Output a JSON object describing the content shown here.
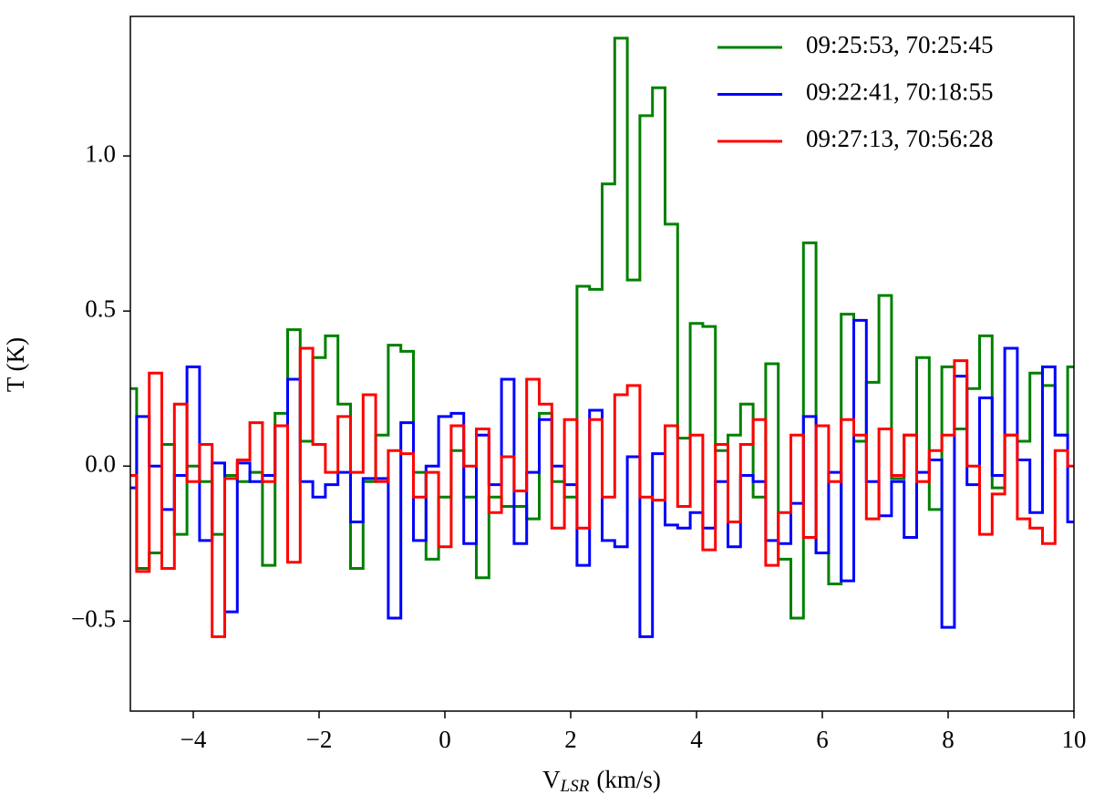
{
  "chart_data": {
    "type": "step",
    "xlabel": [
      "V",
      "LSR",
      "(km/s)"
    ],
    "ylabel": "T (K)",
    "xlim": [
      -5,
      10
    ],
    "ylim": [
      -0.79,
      1.45
    ],
    "xticks": [
      {
        "value": -4,
        "label": "−4"
      },
      {
        "value": -2,
        "label": "−2"
      },
      0,
      2,
      4,
      6,
      8,
      10
    ],
    "yticks": [
      {
        "value": -0.5,
        "label": "−0.5"
      },
      {
        "value": 0,
        "label": "0.0"
      },
      {
        "value": 0.5,
        "label": "0.5"
      },
      {
        "value": 1,
        "label": "1.0"
      }
    ],
    "legend": "upper right",
    "x": [
      -5,
      -4.8,
      -4.6,
      -4.4,
      -4.2,
      -4,
      -3.8,
      -3.6,
      -3.4,
      -3.2,
      -3,
      -2.8,
      -2.6,
      -2.4,
      -2.2,
      -2,
      -1.8,
      -1.6,
      -1.4,
      -1.2,
      -1,
      -0.8,
      -0.6,
      -0.4,
      -0.2,
      0,
      0.2,
      0.4,
      0.6,
      0.8,
      1,
      1.2,
      1.4,
      1.6,
      1.8,
      2,
      2.2,
      2.4,
      2.6,
      2.8,
      3,
      3.2,
      3.4,
      3.6,
      3.8,
      4,
      4.2,
      4.4,
      4.6,
      4.8,
      5,
      5.2,
      5.4,
      5.6,
      5.8,
      6,
      6.2,
      6.4,
      6.6,
      6.8,
      7,
      7.2,
      7.4,
      7.6,
      7.8,
      8,
      8.2,
      8.4,
      8.6,
      8.8,
      9,
      9.2,
      9.4,
      9.6,
      9.8,
      10
    ],
    "series": [
      {
        "name": "09:25:53, 70:25:45",
        "color": "#008000",
        "values": [
          0.25,
          -0.33,
          -0.28,
          0.07,
          -0.22,
          0.0,
          -0.05,
          -0.22,
          -0.03,
          -0.05,
          -0.02,
          -0.32,
          0.17,
          0.44,
          0.08,
          0.35,
          0.42,
          0.2,
          -0.33,
          -0.05,
          0.1,
          0.39,
          0.37,
          -0.02,
          -0.3,
          -0.1,
          0.05,
          -0.1,
          -0.36,
          -0.1,
          -0.13,
          -0.13,
          -0.17,
          0.17,
          -0.05,
          -0.1,
          0.58,
          0.57,
          0.91,
          1.38,
          0.6,
          1.13,
          1.22,
          0.78,
          0.09,
          0.46,
          0.45,
          0.05,
          0.1,
          0.2,
          -0.1,
          0.33,
          -0.3,
          -0.49,
          0.72,
          -0.28,
          -0.38,
          0.49,
          0.08,
          0.27,
          0.55,
          -0.04,
          0.1,
          0.35,
          -0.14,
          0.32,
          0.12,
          0.25,
          0.42,
          -0.07,
          0.1,
          0.08,
          0.3,
          0.26,
          0.1,
          0.32
        ]
      },
      {
        "name": "09:22:41, 70:18:55",
        "color": "#0000ff",
        "values": [
          -0.07,
          0.16,
          0.0,
          -0.14,
          -0.03,
          0.32,
          -0.24,
          0.01,
          -0.47,
          0.01,
          -0.05,
          -0.03,
          0.13,
          0.28,
          -0.05,
          -0.1,
          -0.06,
          -0.02,
          -0.18,
          -0.04,
          -0.04,
          -0.49,
          0.14,
          -0.24,
          0.0,
          0.16,
          0.17,
          -0.25,
          0.1,
          -0.06,
          0.28,
          -0.25,
          -0.02,
          0.15,
          0.0,
          -0.06,
          -0.32,
          0.18,
          -0.24,
          -0.26,
          0.03,
          -0.55,
          0.04,
          -0.19,
          -0.2,
          -0.15,
          -0.2,
          -0.05,
          -0.26,
          -0.03,
          -0.05,
          -0.24,
          -0.25,
          -0.12,
          0.16,
          -0.28,
          -0.02,
          -0.37,
          0.47,
          -0.05,
          -0.16,
          -0.05,
          -0.23,
          -0.02,
          0.02,
          -0.52,
          0.29,
          -0.06,
          0.22,
          -0.03,
          0.38,
          0.02,
          -0.15,
          0.32,
          0.1,
          -0.18
        ]
      },
      {
        "name": "09:27:13, 70:56:28",
        "color": "#ff0000",
        "values": [
          -0.03,
          -0.34,
          0.3,
          -0.33,
          0.2,
          -0.05,
          0.07,
          -0.55,
          -0.04,
          0.02,
          0.14,
          -0.05,
          0.13,
          -0.31,
          0.38,
          0.07,
          -0.02,
          0.16,
          -0.02,
          0.23,
          -0.05,
          0.05,
          0.04,
          -0.1,
          -0.02,
          -0.26,
          0.13,
          0.0,
          0.12,
          -0.15,
          0.03,
          -0.08,
          0.28,
          0.2,
          -0.2,
          0.15,
          -0.2,
          0.15,
          -0.1,
          0.23,
          0.26,
          -0.1,
          -0.11,
          0.13,
          -0.13,
          0.1,
          -0.27,
          0.07,
          -0.18,
          0.07,
          0.15,
          -0.32,
          -0.15,
          0.1,
          -0.23,
          0.13,
          -0.05,
          0.15,
          0.1,
          -0.17,
          0.12,
          -0.03,
          0.1,
          -0.05,
          0.05,
          0.1,
          0.34,
          0.0,
          -0.22,
          -0.09,
          0.1,
          -0.17,
          -0.2,
          -0.25,
          0.05,
          0.0
        ]
      }
    ]
  }
}
